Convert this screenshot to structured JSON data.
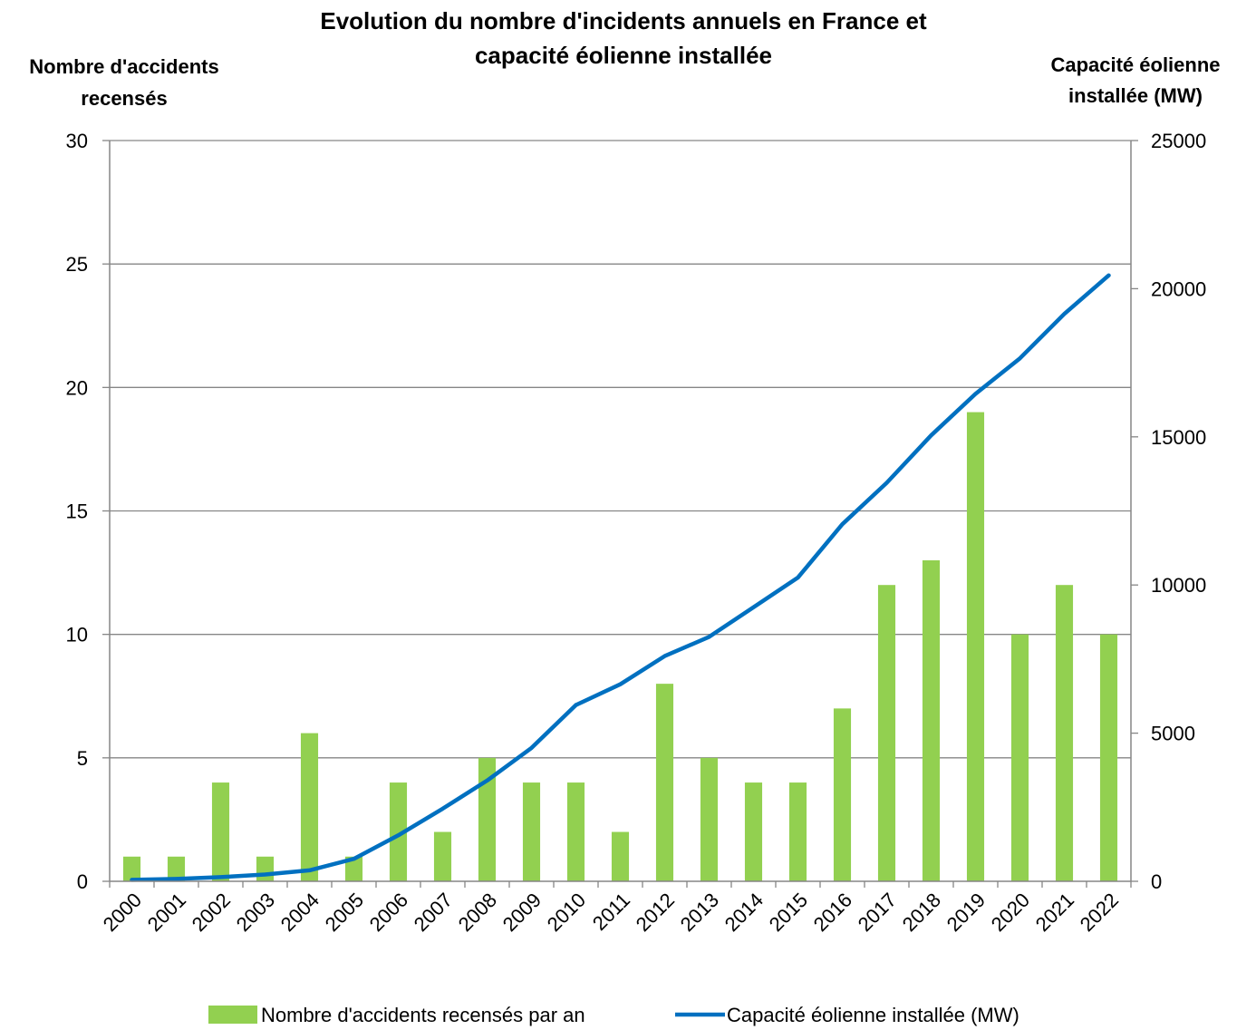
{
  "chart_data": {
    "type": "bar",
    "title": [
      "Evolution du nombre d'incidents annuels en France et",
      "capacité éolienne installée"
    ],
    "ylabel": [
      "Nombre d'accidents",
      "recensés"
    ],
    "y2label": [
      "Capacité éolienne",
      "installée (MW)"
    ],
    "categories": [
      "2000",
      "2001",
      "2002",
      "2003",
      "2004",
      "2005",
      "2006",
      "2007",
      "2008",
      "2009",
      "2010",
      "2011",
      "2012",
      "2013",
      "2014",
      "2015",
      "2016",
      "2017",
      "2018",
      "2019",
      "2020",
      "2021",
      "2022"
    ],
    "ylim": [
      0,
      30
    ],
    "yticks": [
      "0",
      "5",
      "10",
      "15",
      "20",
      "25",
      "30"
    ],
    "y2lim": [
      0,
      25000
    ],
    "y2ticks": [
      "0",
      "5000",
      "10000",
      "15000",
      "20000",
      "25000"
    ],
    "grid": true,
    "legend_position": "bottom",
    "series": [
      {
        "name": "Nombre d'accidents recensés par an",
        "type": "bar",
        "axis": "left",
        "color": "#92d050",
        "values": [
          1,
          1,
          4,
          1,
          6,
          1,
          4,
          2,
          5,
          4,
          4,
          2,
          8,
          5,
          4,
          4,
          7,
          12,
          13,
          19,
          10,
          12,
          10
        ]
      },
      {
        "name": "Capacité éolienne installée (MW)",
        "type": "line",
        "axis": "right",
        "color": "#0070c0",
        "values": [
          50,
          80,
          140,
          230,
          370,
          760,
          1550,
          2450,
          3400,
          4500,
          5950,
          6650,
          7600,
          8250,
          9250,
          10250,
          12050,
          13450,
          15050,
          16450,
          17650,
          19150,
          20450
        ]
      }
    ]
  }
}
